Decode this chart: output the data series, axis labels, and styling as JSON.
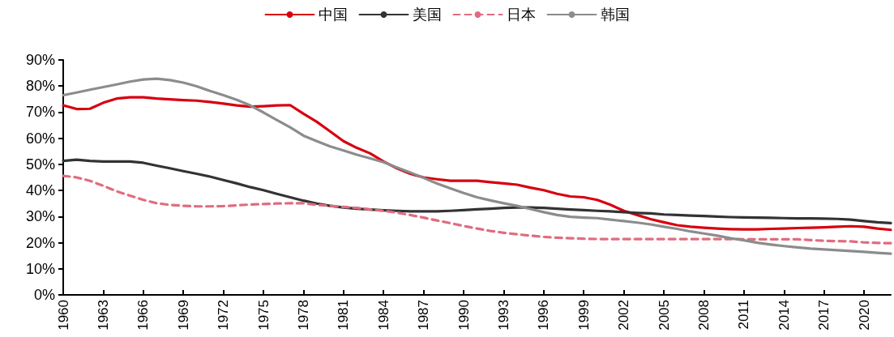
{
  "chart_data": {
    "type": "line",
    "marker": "none",
    "legend": "top",
    "grid": false,
    "x": [
      1960,
      1961,
      1962,
      1963,
      1964,
      1965,
      1966,
      1967,
      1968,
      1969,
      1970,
      1971,
      1972,
      1973,
      1974,
      1975,
      1976,
      1977,
      1978,
      1979,
      1980,
      1981,
      1982,
      1983,
      1984,
      1985,
      1986,
      1987,
      1988,
      1989,
      1990,
      1991,
      1992,
      1993,
      1994,
      1995,
      1996,
      1997,
      1998,
      1999,
      2000,
      2001,
      2002,
      2003,
      2004,
      2005,
      2006,
      2007,
      2008,
      2009,
      2010,
      2011,
      2012,
      2013,
      2014,
      2015,
      2016,
      2017,
      2018,
      2019,
      2020,
      2021,
      2022
    ],
    "xlim": [
      1960,
      2022
    ],
    "xticks": [
      1960,
      1963,
      1966,
      1969,
      1972,
      1975,
      1978,
      1981,
      1984,
      1987,
      1990,
      1993,
      1996,
      1999,
      2002,
      2005,
      2008,
      2011,
      2014,
      2017,
      2020
    ],
    "ylim": [
      0,
      90
    ],
    "yticks": [
      {
        "value": 0,
        "label": "0%"
      },
      {
        "value": 10,
        "label": "10%"
      },
      {
        "value": 20,
        "label": "20%"
      },
      {
        "value": 30,
        "label": "30%"
      },
      {
        "value": 40,
        "label": "40%"
      },
      {
        "value": 50,
        "label": "50%"
      },
      {
        "value": 60,
        "label": "60%"
      },
      {
        "value": 70,
        "label": "70%"
      },
      {
        "value": 80,
        "label": "80%"
      },
      {
        "value": 90,
        "label": "90%"
      }
    ],
    "series": [
      {
        "name": "中国",
        "color": "#d7000f",
        "line_style": "solid",
        "values": [
          72.6,
          71.2,
          71.3,
          73.6,
          75.2,
          75.7,
          75.7,
          75.2,
          74.9,
          74.6,
          74.4,
          73.9,
          73.3,
          72.6,
          72.1,
          72.3,
          72.6,
          72.7,
          69.4,
          66.3,
          62.6,
          58.9,
          56.3,
          54.2,
          51.1,
          48.5,
          46.4,
          45.0,
          44.3,
          43.7,
          43.7,
          43.7,
          43.2,
          42.7,
          42.2,
          41.1,
          40.1,
          38.7,
          37.7,
          37.4,
          36.4,
          34.5,
          32.2,
          30.6,
          29.0,
          27.8,
          26.7,
          26.1,
          25.7,
          25.4,
          25.2,
          25.1,
          25.1,
          25.3,
          25.4,
          25.6,
          25.7,
          25.9,
          26.1,
          26.3,
          26.1,
          25.4,
          24.9
        ]
      },
      {
        "name": "美国",
        "color": "#333333",
        "line_style": "solid",
        "values": [
          51.3,
          51.8,
          51.3,
          51.1,
          51.1,
          51.1,
          50.6,
          49.5,
          48.5,
          47.4,
          46.4,
          45.3,
          44.0,
          42.7,
          41.3,
          40.1,
          38.7,
          37.4,
          36.1,
          35.0,
          34.1,
          33.5,
          33.0,
          32.7,
          32.4,
          32.2,
          32.0,
          32.0,
          32.0,
          32.2,
          32.5,
          32.8,
          33.0,
          33.3,
          33.5,
          33.5,
          33.3,
          33.0,
          32.7,
          32.5,
          32.2,
          32.0,
          31.7,
          31.4,
          31.2,
          30.8,
          30.6,
          30.4,
          30.2,
          30.0,
          29.8,
          29.7,
          29.6,
          29.5,
          29.4,
          29.3,
          29.3,
          29.2,
          29.1,
          28.8,
          28.3,
          27.8,
          27.5
        ]
      },
      {
        "name": "日本",
        "color": "#e06c7f",
        "line_style": "dashed",
        "values": [
          45.6,
          45.0,
          43.7,
          41.8,
          39.7,
          38.0,
          36.4,
          35.1,
          34.5,
          34.1,
          33.9,
          33.9,
          34.0,
          34.3,
          34.6,
          34.8,
          35.0,
          35.1,
          35.1,
          34.5,
          34.1,
          33.7,
          33.3,
          32.7,
          32.2,
          31.5,
          30.6,
          29.6,
          28.5,
          27.5,
          26.4,
          25.4,
          24.5,
          23.8,
          23.2,
          22.7,
          22.2,
          21.9,
          21.7,
          21.5,
          21.4,
          21.4,
          21.4,
          21.4,
          21.4,
          21.4,
          21.4,
          21.4,
          21.4,
          21.4,
          21.4,
          21.3,
          21.3,
          21.3,
          21.3,
          21.3,
          21.0,
          20.7,
          20.6,
          20.5,
          20.1,
          19.9,
          19.8
        ]
      },
      {
        "name": "韩国",
        "color": "#8c8c8c",
        "line_style": "solid",
        "values": [
          76.5,
          77.5,
          78.6,
          79.6,
          80.6,
          81.7,
          82.5,
          82.8,
          82.3,
          81.3,
          79.9,
          78.1,
          76.5,
          74.7,
          72.6,
          69.9,
          67.0,
          64.2,
          61.0,
          58.9,
          56.9,
          55.3,
          53.7,
          52.3,
          50.8,
          48.8,
          46.9,
          44.8,
          42.7,
          40.8,
          39.0,
          37.4,
          36.2,
          35.1,
          34.1,
          32.9,
          31.7,
          30.6,
          29.9,
          29.6,
          29.4,
          28.8,
          28.3,
          27.7,
          27.0,
          26.1,
          25.3,
          24.3,
          23.5,
          22.7,
          21.7,
          20.9,
          20.0,
          19.3,
          18.7,
          18.2,
          17.7,
          17.4,
          17.1,
          16.8,
          16.5,
          16.1,
          15.8
        ]
      }
    ]
  }
}
